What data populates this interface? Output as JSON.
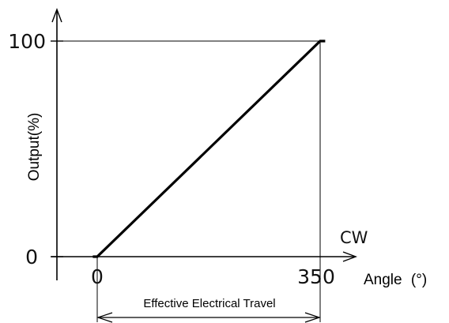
{
  "chart_data": {
    "type": "line",
    "title": "",
    "xlabel": "Angle",
    "xunit": "(°)",
    "ylabel": "Output(%)",
    "direction_label": "CW",
    "span_label": "Effective Electrical Travel",
    "x_ticks": [
      "0",
      "350"
    ],
    "y_ticks": [
      "0",
      "100"
    ],
    "xlim": [
      0,
      350
    ],
    "ylim": [
      0,
      100
    ],
    "grid": false,
    "series": [
      {
        "points": [
          [
            -7,
            0
          ],
          [
            0,
            0
          ],
          [
            350,
            100
          ],
          [
            358,
            100
          ]
        ]
      }
    ]
  }
}
